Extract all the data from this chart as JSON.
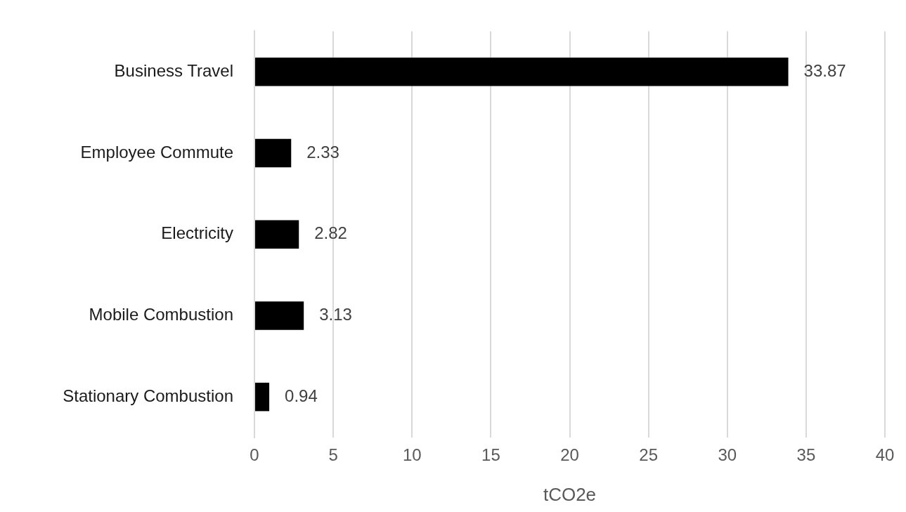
{
  "chart_data": {
    "type": "bar",
    "orientation": "horizontal",
    "xlabel": "tCO2e",
    "categories": [
      "Business Travel",
      "Employee Commute",
      "Electricity",
      "Mobile Combustion",
      "Stationary Combustion"
    ],
    "values": [
      33.87,
      2.33,
      2.82,
      3.13,
      0.94
    ],
    "color": "#000000",
    "xlim": [
      0,
      40
    ],
    "xticks": [
      0,
      5,
      10,
      15,
      20,
      25,
      30,
      35,
      40
    ],
    "grid": "x",
    "legend": false,
    "data_labels": true
  }
}
